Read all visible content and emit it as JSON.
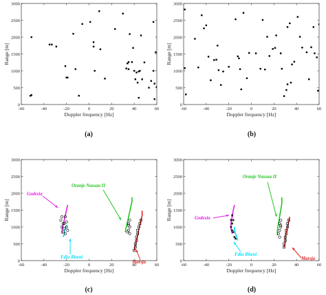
{
  "figure": {
    "panels": [
      {
        "label": "(a)"
      },
      {
        "label": "(b)"
      },
      {
        "label": "(c)"
      },
      {
        "label": "(d)"
      }
    ]
  },
  "chart_data": [
    {
      "type": "scatter",
      "panel": "(a)",
      "xlabel": "Doppler frequency [Hz]",
      "ylabel": "Range [m]",
      "xlim": [
        -60,
        60
      ],
      "ylim": [
        0,
        3000
      ],
      "xticks": [
        -60,
        -40,
        -20,
        0,
        20,
        40,
        60
      ],
      "yticks": [
        0,
        500,
        1000,
        1500,
        2000,
        2500,
        3000
      ],
      "series": [
        {
          "marker": "square",
          "color": "#000000",
          "points": [
            [
              -51,
              2000
            ],
            [
              -52,
              260
            ],
            [
              -51,
              280
            ],
            [
              -35,
              1780
            ],
            [
              -33,
              1780
            ],
            [
              -29,
              1720
            ],
            [
              -21,
              1140
            ],
            [
              -20,
              800
            ],
            [
              -19,
              800
            ],
            [
              -14,
              2100
            ],
            [
              -12,
              1050
            ],
            [
              -9,
              260
            ],
            [
              -6,
              2390
            ],
            [
              1,
              2450
            ],
            [
              4,
              1720
            ],
            [
              4,
              1850
            ],
            [
              5,
              1000
            ],
            [
              9,
              2770
            ],
            [
              10,
              1640
            ],
            [
              14,
              770
            ],
            [
              23,
              2240
            ],
            [
              30,
              2700
            ],
            [
              33,
              1070
            ],
            [
              34,
              1220
            ],
            [
              35,
              1260
            ],
            [
              35,
              1050
            ],
            [
              36,
              2090
            ],
            [
              38,
              1260
            ],
            [
              39,
              1680
            ],
            [
              40,
              1000
            ],
            [
              41,
              750
            ],
            [
              42,
              950
            ],
            [
              43,
              650
            ],
            [
              44,
              980
            ],
            [
              44,
              200
            ],
            [
              45,
              1000
            ],
            [
              46,
              2050
            ],
            [
              47,
              750
            ],
            [
              49,
              1250
            ],
            [
              53,
              500
            ],
            [
              55,
              700
            ],
            [
              57,
              2450
            ],
            [
              57,
              1000
            ],
            [
              58,
              620
            ],
            [
              58,
              160
            ],
            [
              59,
              1550
            ],
            [
              60,
              520
            ]
          ]
        }
      ]
    },
    {
      "type": "scatter",
      "panel": "(b)",
      "xlabel": "Doppler frequency [Hz]",
      "ylabel": "Range [m]",
      "xlim": [
        -60,
        60
      ],
      "ylim": [
        0,
        3000
      ],
      "xticks": [
        -60,
        -40,
        -20,
        0,
        20,
        40,
        60
      ],
      "yticks": [
        0,
        500,
        1000,
        1500,
        2000,
        2500,
        3000
      ],
      "series": [
        {
          "marker": "square",
          "color": "#000000",
          "points": [
            [
              -59,
              2820
            ],
            [
              -59,
              1080
            ],
            [
              -58,
              300
            ],
            [
              -50,
              1950
            ],
            [
              -47,
              1100
            ],
            [
              -44,
              2650
            ],
            [
              -42,
              2260
            ],
            [
              -40,
              2350
            ],
            [
              -38,
              1420
            ],
            [
              -36,
              720
            ],
            [
              -33,
              1320
            ],
            [
              -31,
              1330
            ],
            [
              -30,
              1750
            ],
            [
              -29,
              1020
            ],
            [
              -27,
              580
            ],
            [
              -25,
              980
            ],
            [
              -20,
              1120
            ],
            [
              -14,
              2530
            ],
            [
              -12,
              1430
            ],
            [
              -11,
              1370
            ],
            [
              -10,
              1050
            ],
            [
              -9,
              450
            ],
            [
              -7,
              2720
            ],
            [
              -4,
              780
            ],
            [
              -2,
              1530
            ],
            [
              4,
              1520
            ],
            [
              8,
              1060
            ],
            [
              10,
              2510
            ],
            [
              12,
              1040
            ],
            [
              14,
              2010
            ],
            [
              16,
              1440
            ],
            [
              19,
              1650
            ],
            [
              21,
              1680
            ],
            [
              22,
              2050
            ],
            [
              26,
              1520
            ],
            [
              27,
              1060
            ],
            [
              29,
              250
            ],
            [
              31,
              430
            ],
            [
              32,
              600
            ],
            [
              32,
              2300
            ],
            [
              34,
              2410
            ],
            [
              35,
              650
            ],
            [
              36,
              1190
            ],
            [
              38,
              1270
            ],
            [
              41,
              2600
            ],
            [
              43,
              2010
            ],
            [
              45,
              1690
            ],
            [
              49,
              1550
            ],
            [
              51,
              750
            ],
            [
              53,
              1700
            ],
            [
              55,
              2300
            ],
            [
              56,
              1520
            ],
            [
              58,
              1400
            ],
            [
              59,
              410
            ],
            [
              60,
              2380
            ]
          ]
        }
      ]
    },
    {
      "type": "line",
      "panel": "(c)",
      "xlabel": "Doppler frequency [Hz]",
      "ylabel": "Range [m]",
      "xlim": [
        -60,
        60
      ],
      "ylim": [
        0,
        3000
      ],
      "xticks": [
        -60,
        -40,
        -20,
        0,
        20,
        40,
        60
      ],
      "yticks": [
        0,
        500,
        1000,
        1500,
        2000,
        2500,
        3000
      ],
      "series": [
        {
          "name": "Godesia",
          "color": "#e020e0",
          "points": [
            [
              -19,
              1650
            ],
            [
              -20,
              1500
            ],
            [
              -21,
              1350
            ],
            [
              -22,
              1200
            ],
            [
              -23,
              1050
            ],
            [
              -24,
              900
            ],
            [
              -24,
              800
            ]
          ]
        },
        {
          "name": "Fdiu Bheni",
          "color": "#00e0ff",
          "points": [
            [
              -20,
              1050
            ],
            [
              -21,
              950
            ],
            [
              -22,
              850
            ],
            [
              -22,
              780
            ],
            [
              -23,
              700
            ]
          ]
        },
        {
          "name": "Oranje Nassau II",
          "color": "#22c422",
          "points": [
            [
              38,
              1880
            ],
            [
              38,
              1750
            ],
            [
              37,
              1600
            ],
            [
              36,
              1450
            ],
            [
              35,
              1300
            ],
            [
              34,
              1150
            ],
            [
              33,
              1000
            ],
            [
              32,
              850
            ]
          ]
        },
        {
          "name": "Marsja",
          "color": "#e02020",
          "points": [
            [
              47,
              1480
            ],
            [
              47,
              1350
            ],
            [
              46,
              1200
            ],
            [
              45,
              1050
            ],
            [
              44,
              900
            ],
            [
              43,
              750
            ],
            [
              42,
              600
            ],
            [
              41,
              450
            ],
            [
              40,
              300
            ]
          ]
        },
        {
          "marker": "circle-open",
          "color": "#000000",
          "points": [
            [
              -24,
              1300
            ],
            [
              -25,
              1200
            ],
            [
              -23,
              1100
            ],
            [
              -24,
              1000
            ],
            [
              -22,
              950
            ],
            [
              -23,
              850
            ],
            [
              -21,
              800
            ],
            [
              -20,
              1000
            ],
            [
              -19,
              900
            ],
            [
              -22,
              1100
            ],
            [
              -20,
              1150
            ],
            [
              -21,
              1300
            ]
          ]
        },
        {
          "marker": "circle-open",
          "color": "#000000",
          "points": [
            [
              36,
              1200
            ],
            [
              35,
              1100
            ],
            [
              36,
              1000
            ],
            [
              35,
              900
            ],
            [
              34,
              850
            ],
            [
              36,
              800
            ],
            [
              35,
              1050
            ]
          ]
        },
        {
          "marker": "square-open",
          "color": "#000000",
          "points": [
            [
              46,
              1200
            ],
            [
              45,
              1100
            ],
            [
              44,
              1000
            ],
            [
              43,
              900
            ],
            [
              43,
              800
            ],
            [
              42,
              700
            ],
            [
              42,
              600
            ],
            [
              41,
              500
            ],
            [
              41,
              400
            ],
            [
              40,
              300
            ]
          ]
        }
      ],
      "annotations": [
        {
          "text": "Godesia",
          "color": "#e020e0"
        },
        {
          "text": "Oranje Nassau II",
          "color": "#22c422"
        },
        {
          "text": "Fdiu Bheni",
          "color": "#00e0ff"
        },
        {
          "text": "Marsja",
          "color": "#e02020"
        }
      ]
    },
    {
      "type": "line",
      "panel": "(d)",
      "xlabel": "Doppler frequency [Hz]",
      "ylabel": "Range [m]",
      "xlim": [
        -60,
        60
      ],
      "ylim": [
        0,
        3000
      ],
      "xticks": [
        -60,
        -40,
        -20,
        0,
        20,
        40,
        60
      ],
      "yticks": [
        0,
        500,
        1000,
        1500,
        2000,
        2500,
        3000
      ],
      "series": [
        {
          "name": "Godesia",
          "color": "#e020e0",
          "points": [
            [
              -15,
              1650
            ],
            [
              -16,
              1500
            ],
            [
              -17,
              1300
            ],
            [
              -18,
              1100
            ],
            [
              -18,
              950
            ],
            [
              -17,
              800
            ]
          ]
        },
        {
          "name": "Fdiu Bheni",
          "color": "#00e0ff",
          "points": [
            [
              -15,
              1000
            ],
            [
              -15,
              900
            ],
            [
              -14,
              800
            ],
            [
              -13,
              700
            ],
            [
              -12,
              600
            ]
          ]
        },
        {
          "name": "Oranje Nassau II",
          "color": "#22c422",
          "points": [
            [
              27,
              1880
            ],
            [
              27,
              1700
            ],
            [
              26,
              1500
            ],
            [
              25,
              1300
            ],
            [
              24,
              1100
            ],
            [
              23,
              900
            ],
            [
              23,
              750
            ]
          ]
        },
        {
          "name": "Marsja",
          "color": "#e02020",
          "points": [
            [
              34,
              1300
            ],
            [
              33,
              1150
            ],
            [
              32,
              1000
            ],
            [
              31,
              850
            ],
            [
              30,
              700
            ],
            [
              30,
              550
            ],
            [
              29,
              400
            ]
          ]
        },
        {
          "marker": "star",
          "color": "#000000",
          "points": [
            [
              -17,
              1350
            ],
            [
              -16,
              1200
            ],
            [
              -17,
              1100
            ],
            [
              -18,
              1000
            ],
            [
              -17,
              900
            ],
            [
              -16,
              850
            ],
            [
              -15,
              700
            ],
            [
              -14,
              650
            ],
            [
              -18,
              1200
            ]
          ]
        },
        {
          "marker": "circle-open",
          "color": "#000000",
          "points": [
            [
              26,
              1200
            ],
            [
              25,
              1100
            ],
            [
              26,
              1000
            ],
            [
              25,
              900
            ],
            [
              24,
              800
            ],
            [
              25,
              700
            ],
            [
              26,
              1050
            ]
          ]
        },
        {
          "marker": "square-open",
          "color": "#000000",
          "points": [
            [
              33,
              1200
            ],
            [
              32,
              1100
            ],
            [
              32,
              1000
            ],
            [
              31,
              900
            ],
            [
              31,
              800
            ],
            [
              30,
              700
            ],
            [
              30,
              600
            ],
            [
              29,
              500
            ],
            [
              29,
              400
            ]
          ]
        }
      ],
      "annotations": [
        {
          "text": "Godesia",
          "color": "#e020e0"
        },
        {
          "text": "Oranje Nassau II",
          "color": "#22c422"
        },
        {
          "text": "Fdiu Bheni",
          "color": "#00e0ff"
        },
        {
          "text": "Marsja",
          "color": "#e02020"
        }
      ]
    }
  ]
}
